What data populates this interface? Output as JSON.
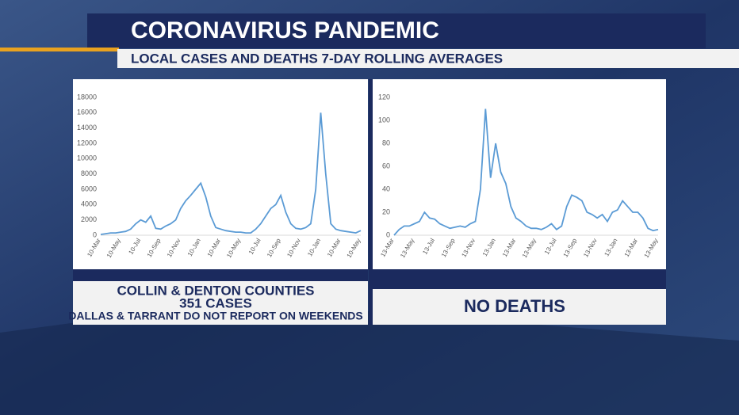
{
  "header": {
    "title": "CORONAVIRUS PANDEMIC",
    "subtitle": "LOCAL CASES AND DEATHS 7-DAY ROLLING AVERAGES"
  },
  "chart_data": [
    {
      "type": "line",
      "color": "#5b9bd5",
      "categories": [
        "10-Mar",
        null,
        null,
        null,
        "10-May",
        null,
        null,
        null,
        "10-Jul",
        null,
        null,
        null,
        "10-Sep",
        null,
        null,
        null,
        "10-Nov",
        null,
        null,
        null,
        "10-Jan",
        null,
        null,
        null,
        "10-Mar",
        null,
        null,
        null,
        "10-May",
        null,
        null,
        null,
        "10-Jul",
        null,
        null,
        null,
        "10-Sep",
        null,
        null,
        null,
        "10-Nov",
        null,
        null,
        null,
        "10-Jan",
        null,
        null,
        null,
        "10-Mar",
        null,
        null,
        null,
        "10-May"
      ],
      "values": [
        100,
        200,
        300,
        300,
        400,
        500,
        800,
        1500,
        2000,
        1700,
        2500,
        900,
        800,
        1200,
        1500,
        2000,
        3500,
        4500,
        5200,
        6000,
        6800,
        5000,
        2500,
        1000,
        800,
        600,
        500,
        400,
        400,
        300,
        300,
        800,
        1500,
        2500,
        3500,
        4000,
        5200,
        3000,
        1500,
        900,
        800,
        1000,
        1500,
        6000,
        16000,
        8000,
        1500,
        800,
        600,
        500,
        400,
        300,
        600
      ],
      "ylim": [
        0,
        18000
      ],
      "yticks": [
        0,
        2000,
        4000,
        6000,
        8000,
        10000,
        12000,
        14000,
        16000,
        18000
      ]
    },
    {
      "type": "line",
      "color": "#5b9bd5",
      "categories": [
        "13-Mar",
        null,
        null,
        null,
        "13-May",
        null,
        null,
        null,
        "13-Jul",
        null,
        null,
        null,
        "13-Sep",
        null,
        null,
        null,
        "13-Nov",
        null,
        null,
        null,
        "13-Jan",
        null,
        null,
        null,
        "13-Mar",
        null,
        null,
        null,
        "13-May",
        null,
        null,
        null,
        "13-Jul",
        null,
        null,
        null,
        "13-Sep",
        null,
        null,
        null,
        "13-Nov",
        null,
        null,
        null,
        "13-Jan",
        null,
        null,
        null,
        "13-Mar",
        null,
        null,
        null,
        "13-May"
      ],
      "values": [
        0,
        5,
        8,
        8,
        10,
        12,
        20,
        15,
        14,
        10,
        8,
        6,
        7,
        8,
        7,
        10,
        12,
        40,
        110,
        50,
        80,
        55,
        45,
        25,
        15,
        12,
        8,
        6,
        6,
        5,
        7,
        10,
        5,
        8,
        25,
        35,
        33,
        30,
        20,
        18,
        15,
        18,
        12,
        20,
        22,
        30,
        25,
        20,
        20,
        15,
        6,
        4,
        5
      ],
      "ylim": [
        0,
        120
      ],
      "yticks": [
        0,
        20,
        40,
        60,
        80,
        100,
        120
      ]
    }
  ],
  "captions": {
    "left": [
      "COLLIN & DENTON COUNTIES",
      "351 CASES",
      "DALLAS & TARRANT DO NOT REPORT ON WEEKENDS"
    ],
    "right": "NO DEATHS"
  }
}
